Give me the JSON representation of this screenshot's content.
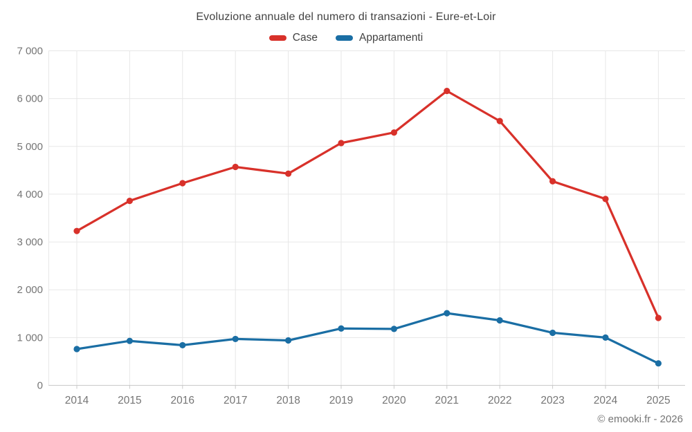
{
  "chart_data": {
    "type": "line",
    "title": "Evoluzione annuale del numero di transazioni - Eure-et-Loir",
    "categories": [
      "2014",
      "2015",
      "2016",
      "2017",
      "2018",
      "2019",
      "2020",
      "2021",
      "2022",
      "2023",
      "2024",
      "2025"
    ],
    "series": [
      {
        "name": "Case",
        "color": "#d8312a",
        "values": [
          3230,
          3860,
          4230,
          4570,
          4430,
          5070,
          5290,
          6160,
          5530,
          4270,
          3900,
          1410
        ]
      },
      {
        "name": "Appartamenti",
        "color": "#1a6ea4",
        "values": [
          760,
          930,
          840,
          970,
          940,
          1190,
          1180,
          1510,
          1360,
          1100,
          1000,
          460
        ]
      }
    ],
    "ylim": [
      0,
      7000
    ],
    "y_ticks": [
      0,
      1000,
      2000,
      3000,
      4000,
      5000,
      6000,
      7000
    ],
    "y_tick_labels": [
      "0",
      "1 000",
      "2 000",
      "3 000",
      "4 000",
      "5 000",
      "6 000",
      "7 000"
    ],
    "grid": true,
    "legend_position": "top"
  },
  "footer": {
    "credit": "© emooki.fr - 2026"
  },
  "colors": {
    "grid": "#e7e7e7",
    "axis": "#c9c9c9",
    "tick_text": "#757575",
    "title_text": "#424242"
  }
}
